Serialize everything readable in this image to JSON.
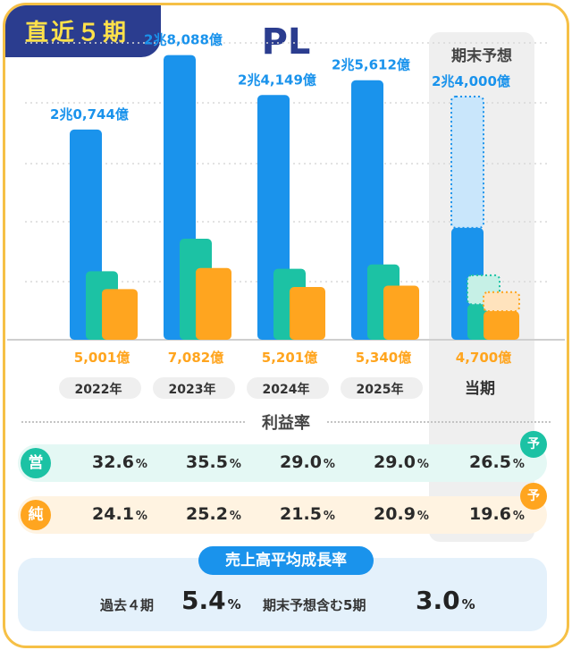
{
  "badge": "直近５期",
  "title": "PL",
  "forecast_header": "期末予想",
  "colors": {
    "revenue": "#1a93ec",
    "operating": "#1cc2a4",
    "net": "#ffa51f",
    "navy": "#2b3d8f",
    "frame": "#f6c046"
  },
  "chart_data": {
    "type": "bar",
    "title": "PL",
    "categories": [
      "2022年",
      "2023年",
      "2024年",
      "2025年",
      "当期"
    ],
    "forecast_category": "当期",
    "series": [
      {
        "name": "売上高",
        "unit": "億円",
        "values": [
          20744,
          28088,
          24149,
          25612,
          24000
        ],
        "labels": [
          "2兆0,744億",
          "2兆8,088億",
          "2兆4,149億",
          "2兆5,612億",
          "2兆4,000億"
        ]
      },
      {
        "name": "営業利益",
        "unit": "億円",
        "values": [
          6760,
          9970,
          7000,
          7430,
          6360
        ]
      },
      {
        "name": "純利益",
        "unit": "億円",
        "values": [
          5001,
          7082,
          5201,
          5340,
          4700
        ],
        "labels": [
          "5,001億",
          "7,082億",
          "5,201億",
          "5,340億",
          "4,700億"
        ]
      }
    ],
    "ylim": [
      0,
      30000
    ],
    "grid": true
  },
  "profit_rate": {
    "title": "利益率",
    "operating_icon": "営",
    "net_icon": "純",
    "forecast_mark": "予",
    "unit": "%",
    "operating": [
      "32.6",
      "35.5",
      "29.0",
      "29.0",
      "26.5"
    ],
    "net": [
      "24.1",
      "25.2",
      "21.5",
      "20.9",
      "19.6"
    ]
  },
  "growth": {
    "title": "売上高平均成長率",
    "past_label": "過去４期",
    "past_value": "5.4",
    "incl_label": "期末予想含む5期",
    "incl_value": "3.0",
    "unit": "%"
  }
}
